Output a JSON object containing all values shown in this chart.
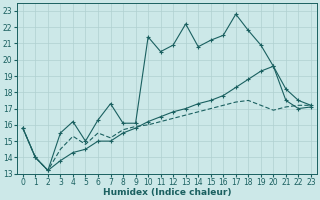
{
  "xlabel": "Humidex (Indice chaleur)",
  "xlim": [
    -0.5,
    23.5
  ],
  "ylim": [
    13,
    23.5
  ],
  "xticks": [
    0,
    1,
    2,
    3,
    4,
    5,
    6,
    7,
    8,
    9,
    10,
    11,
    12,
    13,
    14,
    15,
    16,
    17,
    18,
    19,
    20,
    21,
    22,
    23
  ],
  "yticks": [
    13,
    14,
    15,
    16,
    17,
    18,
    19,
    20,
    21,
    22,
    23
  ],
  "bg_color": "#cce8e8",
  "line_color": "#1a6060",
  "grid_color": "#b0d0d0",
  "line1_x": [
    0,
    1,
    2,
    3,
    4,
    5,
    6,
    7,
    8,
    9,
    10,
    11,
    12,
    13,
    14,
    15,
    16,
    17,
    18,
    19,
    20,
    21,
    22,
    23
  ],
  "line1_y": [
    15.8,
    14.0,
    13.2,
    15.5,
    16.2,
    15.0,
    16.3,
    17.3,
    16.1,
    16.1,
    21.4,
    20.5,
    20.9,
    22.2,
    20.8,
    21.2,
    21.5,
    22.8,
    21.8,
    20.9,
    19.6,
    18.2,
    17.5,
    17.2
  ],
  "line2_x": [
    0,
    1,
    2,
    3,
    4,
    5,
    6,
    7,
    8,
    9,
    10,
    11,
    12,
    13,
    14,
    15,
    16,
    17,
    18,
    19,
    20,
    21,
    22,
    23
  ],
  "line2_y": [
    15.8,
    14.0,
    13.2,
    13.8,
    14.3,
    14.5,
    15.0,
    15.0,
    15.5,
    15.8,
    16.2,
    16.5,
    16.8,
    17.0,
    17.3,
    17.5,
    17.8,
    18.3,
    18.8,
    19.3,
    19.6,
    17.5,
    17.0,
    17.1
  ],
  "line3_x": [
    0,
    1,
    2,
    3,
    4,
    5,
    6,
    7,
    8,
    9,
    10,
    11,
    12,
    13,
    14,
    15,
    16,
    17,
    18,
    19,
    20,
    21,
    22,
    23
  ],
  "line3_y": [
    15.8,
    14.0,
    13.2,
    14.5,
    15.3,
    14.8,
    15.5,
    15.2,
    15.7,
    15.9,
    16.0,
    16.2,
    16.4,
    16.6,
    16.8,
    17.0,
    17.2,
    17.4,
    17.5,
    17.2,
    16.9,
    17.1,
    17.2,
    17.2
  ]
}
